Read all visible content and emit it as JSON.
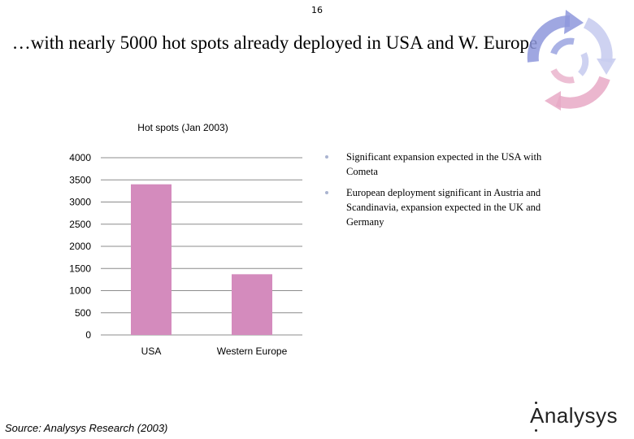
{
  "page_number": "16",
  "headline": "…with nearly 5000 hot spots already deployed in USA and W. Europe",
  "bullets": [
    "Significant expansion expected in the USA with Cometa",
    "European deployment significant in Austria and Scandinavia, expansion expected in the UK and Germany"
  ],
  "source": "Source: Analysys Research (2003)",
  "logo": "Analysys",
  "colors": {
    "bar": "#d48bbd",
    "grid": "#8c8c8c",
    "emblem_blue": "#8e98dc",
    "emblem_pink": "#e7a9c6"
  },
  "chart_data": {
    "type": "bar",
    "title": "Hot spots (Jan 2003)",
    "categories": [
      "USA",
      "Western Europe"
    ],
    "values": [
      3400,
      1370
    ],
    "ylim": [
      0,
      4000
    ],
    "yticks": [
      0,
      500,
      1000,
      1500,
      2000,
      2500,
      3000,
      3500,
      4000
    ],
    "xlabel": "",
    "ylabel": "",
    "grid": true,
    "legend": "none"
  }
}
